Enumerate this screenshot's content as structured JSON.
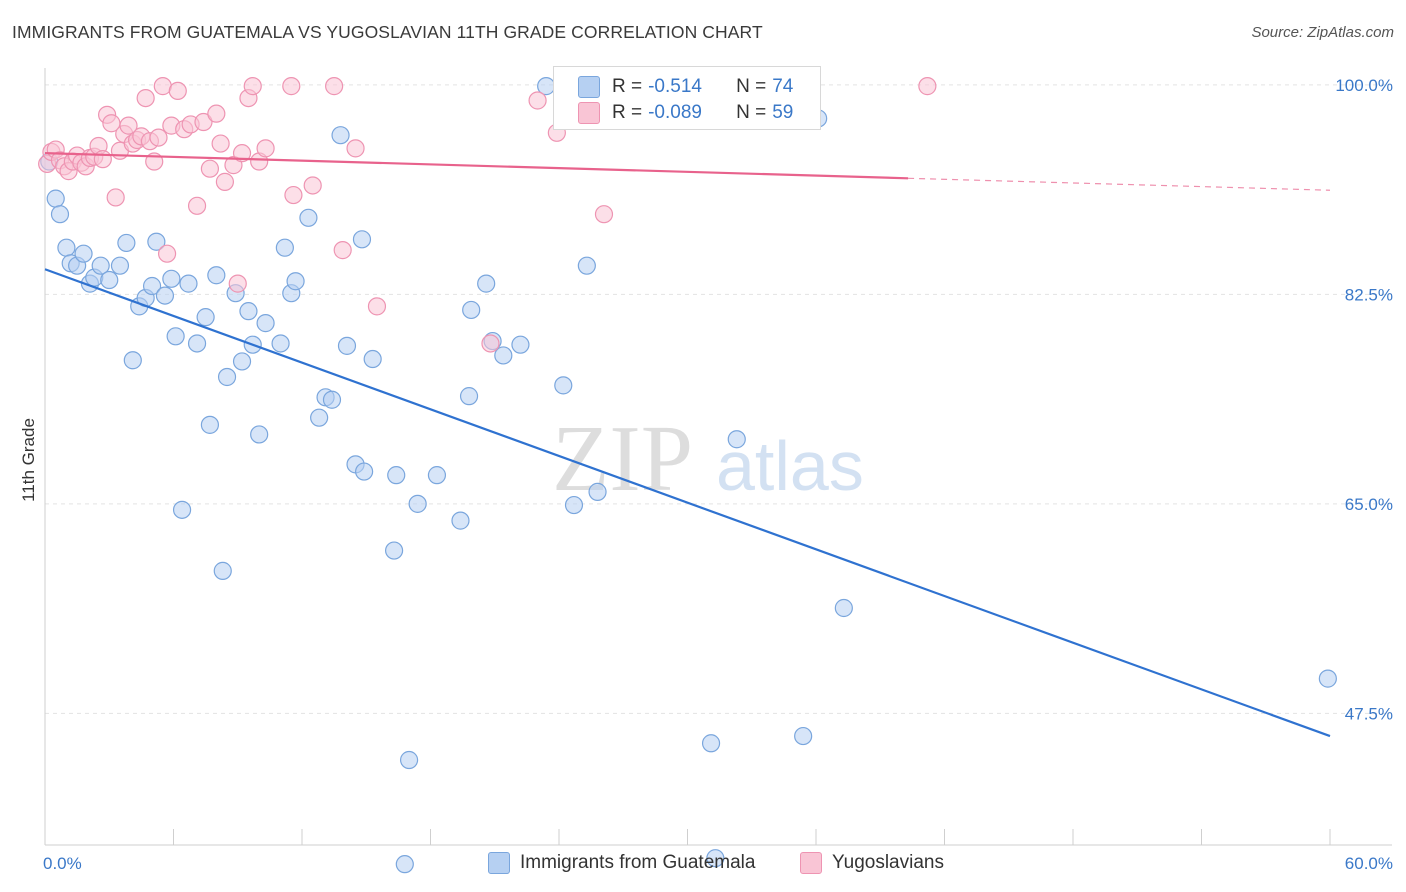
{
  "header": {
    "title": "IMMIGRANTS FROM GUATEMALA VS YUGOSLAVIAN 11TH GRADE CORRELATION CHART",
    "source": "Source: ZipAtlas.com"
  },
  "legend_top": [
    {
      "r_label": "R =",
      "r_value": "-0.514",
      "n_label": "N =",
      "n_value": "74"
    },
    {
      "r_label": "R =",
      "r_value": "-0.089",
      "n_label": "N =",
      "n_value": "59"
    }
  ],
  "legend_bottom": [
    "Immigrants from Guatemala",
    "Yugoslavians"
  ],
  "watermark": {
    "zip": "ZIP",
    "atlas": "atlas"
  },
  "colors": {
    "blue_fill": "#b6d0f2",
    "blue_stroke": "#7aa6dd",
    "blue_line": "#2f72d0",
    "pink_fill": "#f9c5d5",
    "pink_stroke": "#ee94b2",
    "pink_line": "#e8628c",
    "grid": "#e3e3e3",
    "tick_label": "#3a78c8"
  },
  "chart_data": {
    "type": "scatter",
    "title": "IMMIGRANTS FROM GUATEMALA VS YUGOSLAVIAN 11TH GRADE CORRELATION CHART",
    "xlabel": "",
    "ylabel": "11th Grade",
    "xlim": [
      0,
      60
    ],
    "ylim": [
      36.5,
      102.5
    ],
    "x_tick_labels": [
      "0.0%",
      "60.0%"
    ],
    "y_ticks": [
      47.5,
      65.0,
      82.5,
      100.0
    ],
    "y_tick_labels": [
      "47.5%",
      "65.0%",
      "82.5%",
      "100.0%"
    ],
    "grid": true,
    "legend_position": "top-center",
    "series": [
      {
        "name": "Immigrants from Guatemala",
        "r": -0.514,
        "n": 74,
        "trend": {
          "x": [
            0,
            60
          ],
          "y": [
            84.6,
            45.6
          ]
        },
        "points": [
          [
            0.2,
            93.6
          ],
          [
            0.5,
            90.5
          ],
          [
            0.7,
            89.2
          ],
          [
            1.0,
            86.4
          ],
          [
            1.2,
            85.1
          ],
          [
            1.5,
            84.9
          ],
          [
            1.8,
            85.9
          ],
          [
            2.1,
            83.4
          ],
          [
            2.3,
            83.9
          ],
          [
            2.6,
            84.9
          ],
          [
            3.0,
            83.7
          ],
          [
            3.5,
            84.9
          ],
          [
            3.8,
            86.8
          ],
          [
            4.1,
            77.0
          ],
          [
            4.4,
            81.5
          ],
          [
            4.7,
            82.2
          ],
          [
            5.0,
            83.2
          ],
          [
            5.2,
            86.9
          ],
          [
            5.6,
            82.4
          ],
          [
            5.9,
            83.8
          ],
          [
            6.1,
            79.0
          ],
          [
            6.4,
            64.5
          ],
          [
            6.7,
            83.4
          ],
          [
            7.1,
            78.4
          ],
          [
            7.5,
            80.6
          ],
          [
            7.7,
            71.6
          ],
          [
            8.0,
            84.1
          ],
          [
            8.3,
            59.4
          ],
          [
            8.5,
            75.6
          ],
          [
            8.9,
            82.6
          ],
          [
            9.2,
            76.9
          ],
          [
            9.5,
            81.1
          ],
          [
            9.7,
            78.3
          ],
          [
            10.0,
            70.8
          ],
          [
            10.3,
            80.1
          ],
          [
            11.0,
            78.4
          ],
          [
            11.2,
            86.4
          ],
          [
            11.5,
            82.6
          ],
          [
            11.7,
            83.6
          ],
          [
            12.3,
            88.9
          ],
          [
            12.8,
            72.2
          ],
          [
            13.1,
            73.9
          ],
          [
            13.4,
            73.7
          ],
          [
            13.8,
            95.8
          ],
          [
            14.1,
            78.2
          ],
          [
            14.5,
            68.3
          ],
          [
            14.8,
            87.1
          ],
          [
            14.9,
            67.7
          ],
          [
            15.3,
            77.1
          ],
          [
            16.3,
            61.1
          ],
          [
            16.4,
            67.4
          ],
          [
            16.8,
            34.9
          ],
          [
            17.0,
            43.6
          ],
          [
            17.4,
            65.0
          ],
          [
            18.3,
            67.4
          ],
          [
            19.4,
            63.6
          ],
          [
            19.8,
            74.0
          ],
          [
            19.9,
            81.2
          ],
          [
            20.6,
            83.4
          ],
          [
            20.9,
            78.6
          ],
          [
            21.4,
            77.4
          ],
          [
            22.2,
            78.3
          ],
          [
            23.4,
            99.9
          ],
          [
            24.2,
            74.9
          ],
          [
            24.7,
            64.9
          ],
          [
            25.3,
            84.9
          ],
          [
            25.8,
            66.0
          ],
          [
            31.1,
            45.0
          ],
          [
            31.3,
            35.4
          ],
          [
            32.3,
            70.4
          ],
          [
            35.4,
            45.6
          ],
          [
            36.1,
            97.2
          ],
          [
            37.3,
            56.3
          ],
          [
            59.9,
            50.4
          ]
        ]
      },
      {
        "name": "Yugoslavians",
        "r": -0.089,
        "n": 59,
        "trend": {
          "x": [
            0,
            40.3
          ],
          "y": [
            94.3,
            92.2
          ]
        },
        "trend_dashed": {
          "x": [
            40.3,
            60
          ],
          "y": [
            92.2,
            91.2
          ]
        },
        "points": [
          [
            0.1,
            93.4
          ],
          [
            0.3,
            94.4
          ],
          [
            0.5,
            94.6
          ],
          [
            0.7,
            93.7
          ],
          [
            0.9,
            93.2
          ],
          [
            1.1,
            92.8
          ],
          [
            1.3,
            93.6
          ],
          [
            1.5,
            94.1
          ],
          [
            1.7,
            93.5
          ],
          [
            1.9,
            93.2
          ],
          [
            2.1,
            93.9
          ],
          [
            2.3,
            94.0
          ],
          [
            2.5,
            94.9
          ],
          [
            2.7,
            93.8
          ],
          [
            2.9,
            97.5
          ],
          [
            3.1,
            96.8
          ],
          [
            3.3,
            90.6
          ],
          [
            3.5,
            94.5
          ],
          [
            3.7,
            95.9
          ],
          [
            3.9,
            96.6
          ],
          [
            4.1,
            95.1
          ],
          [
            4.3,
            95.4
          ],
          [
            4.5,
            95.7
          ],
          [
            4.7,
            98.9
          ],
          [
            4.9,
            95.3
          ],
          [
            5.1,
            93.6
          ],
          [
            5.3,
            95.6
          ],
          [
            5.5,
            99.9
          ],
          [
            5.7,
            85.9
          ],
          [
            5.9,
            96.6
          ],
          [
            6.2,
            99.5
          ],
          [
            6.5,
            96.3
          ],
          [
            6.8,
            96.7
          ],
          [
            7.1,
            89.9
          ],
          [
            7.4,
            96.9
          ],
          [
            7.7,
            93.0
          ],
          [
            8.0,
            97.6
          ],
          [
            8.2,
            95.1
          ],
          [
            8.4,
            91.9
          ],
          [
            8.8,
            93.3
          ],
          [
            9.0,
            83.4
          ],
          [
            9.2,
            94.3
          ],
          [
            9.5,
            98.9
          ],
          [
            9.7,
            99.9
          ],
          [
            10.0,
            93.6
          ],
          [
            10.3,
            94.7
          ],
          [
            11.5,
            99.9
          ],
          [
            11.6,
            90.8
          ],
          [
            12.5,
            91.6
          ],
          [
            13.5,
            99.9
          ],
          [
            13.9,
            86.2
          ],
          [
            14.5,
            94.7
          ],
          [
            15.5,
            81.5
          ],
          [
            20.8,
            78.4
          ],
          [
            23.0,
            98.7
          ],
          [
            23.9,
            96.0
          ],
          [
            25.8,
            99.9
          ],
          [
            26.1,
            89.2
          ],
          [
            41.2,
            99.9
          ]
        ]
      }
    ]
  }
}
